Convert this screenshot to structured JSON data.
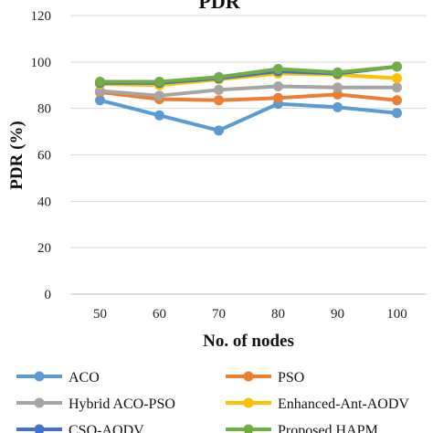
{
  "chart_data": {
    "type": "line",
    "title": "PDR",
    "xlabel": "No. of nodes",
    "ylabel": "PDR (%)",
    "x": [
      50,
      60,
      70,
      80,
      90,
      100
    ],
    "ylim": [
      0,
      120
    ],
    "yticks": [
      0,
      20,
      40,
      60,
      80,
      100,
      120
    ],
    "grid": true,
    "legend_position": "bottom",
    "series": [
      {
        "name": "ACO",
        "color": "#5b9bd5",
        "values": [
          83.5,
          77,
          70.5,
          82,
          80.5,
          78
        ]
      },
      {
        "name": "PSO",
        "color": "#ed7d31",
        "values": [
          87,
          84,
          83.5,
          84.5,
          86,
          83.5
        ]
      },
      {
        "name": "Hybrid ACO-PSO",
        "color": "#a5a5a5",
        "values": [
          87.5,
          85.5,
          88,
          89.5,
          89,
          89
        ]
      },
      {
        "name": "Enhanced-Ant-AODV",
        "color": "#ffc000",
        "values": [
          90.5,
          90,
          92.5,
          95,
          94.5,
          93
        ]
      },
      {
        "name": "CSO-AODV",
        "color": "#4472c4",
        "values": [
          91,
          91,
          93,
          96,
          95,
          98
        ]
      },
      {
        "name": "Proposed HAPM",
        "color": "#70ad47",
        "values": [
          91.5,
          91.5,
          93.5,
          97,
          95.5,
          98
        ]
      }
    ]
  }
}
